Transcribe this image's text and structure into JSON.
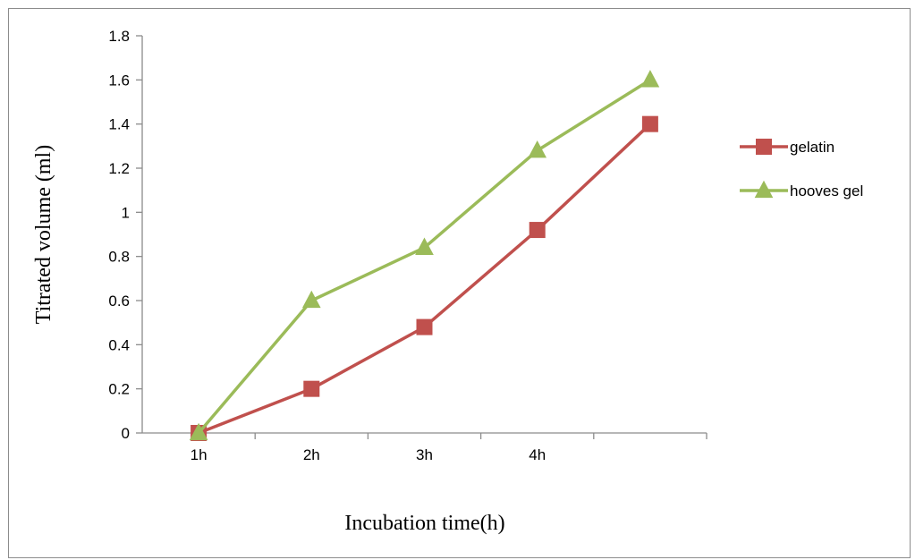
{
  "chart_data": {
    "type": "line",
    "title": "",
    "xlabel": "Incubation time(h)",
    "ylabel": "Titrated  volume (ml)",
    "categories": [
      "1h",
      "2h",
      "3h",
      "4h",
      ""
    ],
    "ylim": [
      0,
      1.8
    ],
    "yticks": [
      "0",
      "0.2",
      "0.4",
      "0.6",
      "0.8",
      "1",
      "1.2",
      "1.4",
      "1.6",
      "1.8"
    ],
    "grid": false,
    "legend_position": "right",
    "series": [
      {
        "name": "gelatin",
        "values": [
          0,
          0.2,
          0.48,
          0.92,
          1.4
        ],
        "color": "#c0504d",
        "marker": "square"
      },
      {
        "name": "hooves gel",
        "values": [
          0,
          0.6,
          0.84,
          1.28,
          1.6
        ],
        "color": "#9bbb59",
        "marker": "triangle"
      }
    ]
  }
}
